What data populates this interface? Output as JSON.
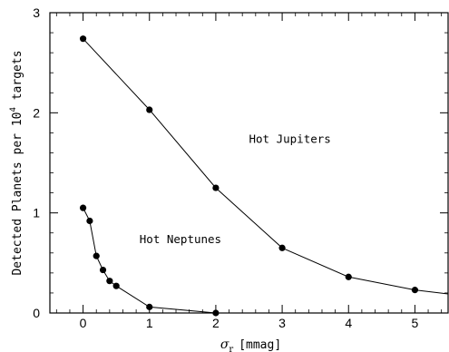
{
  "chart_data": {
    "type": "line",
    "title": "",
    "xlabel": {
      "symbol": "σ",
      "subscript": "r",
      "unit": "[mmag]"
    },
    "ylabel": {
      "text": "Detected Planets per 10",
      "superscript": "4",
      "suffix": " targets"
    },
    "xlim": [
      -0.5,
      5.5
    ],
    "ylim": [
      0,
      3
    ],
    "xticks": [
      0,
      1,
      2,
      3,
      4,
      5
    ],
    "yticks": [
      0,
      1,
      2,
      3
    ],
    "grid": false,
    "series": [
      {
        "name": "Hot Jupiters",
        "x": [
          0,
          1,
          2,
          3,
          4,
          5,
          5.5
        ],
        "y": [
          2.74,
          2.03,
          1.25,
          0.65,
          0.36,
          0.23,
          0.19
        ],
        "marker_count": 6
      },
      {
        "name": "Hot Neptunes",
        "x": [
          0,
          0.1,
          0.2,
          0.3,
          0.4,
          0.5,
          1,
          2
        ],
        "y": [
          1.05,
          0.92,
          0.57,
          0.43,
          0.32,
          0.27,
          0.06,
          0.0
        ],
        "marker_count": 8
      }
    ],
    "annotations": [
      {
        "text": "Hot Jupiters",
        "x": 2.5,
        "y": 1.7
      },
      {
        "text": "Hot Neptunes",
        "x": 0.85,
        "y": 0.7
      }
    ]
  }
}
